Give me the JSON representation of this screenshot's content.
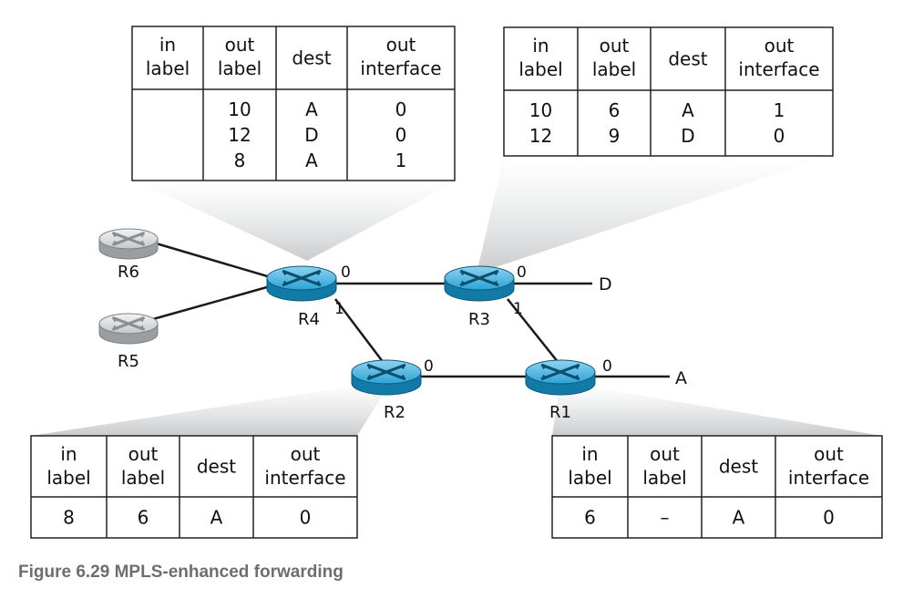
{
  "tables": {
    "r4": {
      "headers": [
        [
          "in",
          "label"
        ],
        [
          "out",
          "label"
        ],
        [
          "dest"
        ],
        [
          "out",
          "interface"
        ]
      ],
      "rows": [
        [
          "",
          "10",
          "A",
          "0"
        ],
        [
          "",
          "12",
          "D",
          "0"
        ],
        [
          "",
          "8",
          "A",
          "1"
        ]
      ]
    },
    "r3": {
      "headers": [
        [
          "in",
          "label"
        ],
        [
          "out",
          "label"
        ],
        [
          "dest"
        ],
        [
          "out",
          "interface"
        ]
      ],
      "rows": [
        [
          "10",
          "6",
          "A",
          "1"
        ],
        [
          "12",
          "9",
          "D",
          "0"
        ]
      ]
    },
    "r2": {
      "headers": [
        [
          "in",
          "label"
        ],
        [
          "out",
          "label"
        ],
        [
          "dest"
        ],
        [
          "out",
          "interface"
        ]
      ],
      "rows": [
        [
          "8",
          "6",
          "A",
          "0"
        ]
      ]
    },
    "r1": {
      "headers": [
        [
          "in",
          "label"
        ],
        [
          "out",
          "label"
        ],
        [
          "dest"
        ],
        [
          "out",
          "interface"
        ]
      ],
      "rows": [
        [
          "6",
          "–",
          "A",
          "0"
        ]
      ]
    }
  },
  "routers": [
    {
      "id": "r6",
      "name": "R6",
      "mpls": false
    },
    {
      "id": "r5",
      "name": "R5",
      "mpls": false
    },
    {
      "id": "r4",
      "name": "R4",
      "mpls": true
    },
    {
      "id": "r3",
      "name": "R3",
      "mpls": true
    },
    {
      "id": "r2",
      "name": "R2",
      "mpls": true
    },
    {
      "id": "r1",
      "name": "R1",
      "mpls": true
    }
  ],
  "interface_labels": {
    "r4_right": "0",
    "r4_down": "1",
    "r3_right": "0",
    "r3_down": "1",
    "r2_right": "0",
    "r1_right": "0"
  },
  "destinations": {
    "d": "D",
    "a": "A"
  },
  "colors": {
    "mpls_router": "#1e9ccd",
    "ip_router": "#b8bcbf",
    "callout": "#d4d6d8",
    "caption": "#6d6e71",
    "table_border": "#222222"
  },
  "caption": "Figure 6.29 MPLS-enhanced forwarding"
}
